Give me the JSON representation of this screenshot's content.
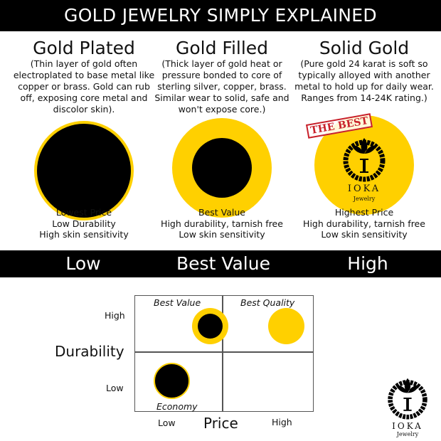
{
  "title": "GOLD JEWELRY SIMPLY EXPLAINED",
  "colors": {
    "gold": "#ffd000",
    "black": "#000000",
    "stamp": "#c8202a"
  },
  "columns": [
    {
      "title": "Gold Plated",
      "description": "(Thin layer of gold often electroplated to base metal like copper or brass. Gold can rub off, exposing core metal and discolor skin).",
      "traits": [
        "Lowest Price",
        "Low Durability",
        "High skin sensitivity"
      ]
    },
    {
      "title": "Gold Filled",
      "description": "(Thick layer of gold heat or pressure bonded to core of sterling silver, copper, brass. Similar wear to solid, safe and won't expose core.)",
      "traits": [
        "Best Value",
        "High durability, tarnish free",
        "Low skin sensitivity"
      ]
    },
    {
      "title": "Solid Gold",
      "description": "(Pure gold 24 karat is soft so typically alloyed with another metal to hold up for daily wear. Ranges from 14-24K rating.)",
      "traits": [
        "Highest Price",
        "High durability, tarnish free",
        "Low skin sensitivity"
      ],
      "badge": "THE BEST"
    }
  ],
  "band": [
    "Low",
    "Best Value",
    "High"
  ],
  "matrix": {
    "y_axis": "Durability",
    "y_high": "High",
    "y_low": "Low",
    "x_axis": "Price",
    "x_low": "Low",
    "x_high": "High",
    "quadrants": {
      "top_left": "Best Value",
      "top_right": "Best Quality",
      "bottom_left": "Economy"
    }
  },
  "logo": {
    "name": "IOKA",
    "sub": "Jewelry"
  }
}
